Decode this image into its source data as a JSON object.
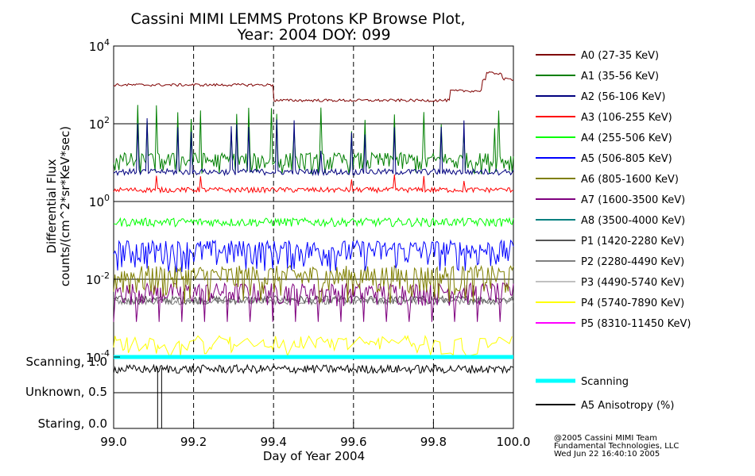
{
  "chart_data": {
    "type": "line",
    "title": "Cassini MIMI LEMMS Protons KP Browse Plot,",
    "subtitle": "Year: 2004 DOY: 099",
    "xlabel": "Day of Year 2004",
    "ylabel_line1": "Differential Flux",
    "ylabel_line2": "counts/(cm^2*sr*KeV*sec)",
    "xlim": [
      99.0,
      100.0
    ],
    "x_ticks": [
      "99.0",
      "99.2",
      "99.4",
      "99.6",
      "99.8",
      "100.0"
    ],
    "x_tick_values": [
      99.0,
      99.2,
      99.4,
      99.6,
      99.8,
      100.0
    ],
    "y_scale": "log",
    "ylim": [
      0.0001,
      10000
    ],
    "y_ticks": [
      {
        "value": 10000,
        "base": "10",
        "exp": "4"
      },
      {
        "value": 100,
        "base": "10",
        "exp": "2"
      },
      {
        "value": 1,
        "base": "10",
        "exp": "0"
      },
      {
        "value": 0.01,
        "base": "10",
        "exp": "-2"
      },
      {
        "value": 0.0001,
        "base": "10",
        "exp": "-4"
      }
    ],
    "lower_panel_ylabels": [
      "Scanning, 1.0",
      "Unknown, 0.5",
      "Staring, 0.0"
    ],
    "lower_panel_ylim": [
      0.0,
      1.0
    ],
    "series": [
      {
        "name": "A0 (27-35 KeV)",
        "color": "#7f0000",
        "approx_level": "~1000 until 99.4, ~400 after, ~700-2000 after 99.84"
      },
      {
        "name": "A1 (35-56 KeV)",
        "color": "#007f00",
        "approx_level": "~10 with spikes to ~300"
      },
      {
        "name": "A2 (56-106 KeV)",
        "color": "#00007f",
        "approx_level": "~6 with spikes to ~150"
      },
      {
        "name": "A3 (106-255 KeV)",
        "color": "#ff0000",
        "approx_level": "~2 with spikes to ~4"
      },
      {
        "name": "A4 (255-506 KeV)",
        "color": "#00ff00",
        "approx_level": "~0.3"
      },
      {
        "name": "A5 (506-805 KeV)",
        "color": "#0000ff",
        "approx_level": "~0.03 to 0.1"
      },
      {
        "name": "A6 (805-1600 KeV)",
        "color": "#7f7f00",
        "approx_level": "~0.005 to 0.02"
      },
      {
        "name": "A7 (1600-3500 KeV)",
        "color": "#7f007f",
        "approx_level": "~0.002 to 0.01"
      },
      {
        "name": "A8 (3500-4000 KeV)",
        "color": "#007f7f",
        "approx_level": "not visible"
      },
      {
        "name": "P1 (1420-2280 KeV)",
        "color": "#555555",
        "approx_level": "~0.003"
      },
      {
        "name": "P2 (2280-4490 KeV)",
        "color": "#7f7f7f",
        "approx_level": "~0.003"
      },
      {
        "name": "P3 (4490-5740 KeV)",
        "color": "#c0c0c0",
        "approx_level": "not visible"
      },
      {
        "name": "P4 (5740-7890 KeV)",
        "color": "#ffff00",
        "approx_level": "~0.0001 to 0.0003"
      },
      {
        "name": "P5 (8310-11450 KeV)",
        "color": "#ff00ff",
        "approx_level": "not visible"
      }
    ],
    "lower_series": [
      {
        "name": "Scanning",
        "color": "#00ffff",
        "value": 1.0
      },
      {
        "name": "A5 Anisotropy (%)",
        "color": "#000000",
        "approx_level": "~0.85 with dropout near 99.11"
      }
    ]
  },
  "credits": {
    "line1": "@2005 Cassini MIMI Team",
    "line2": "Fundamental Technologies, LLC",
    "line3": "Wed Jun 22 16:40:10 2005"
  }
}
